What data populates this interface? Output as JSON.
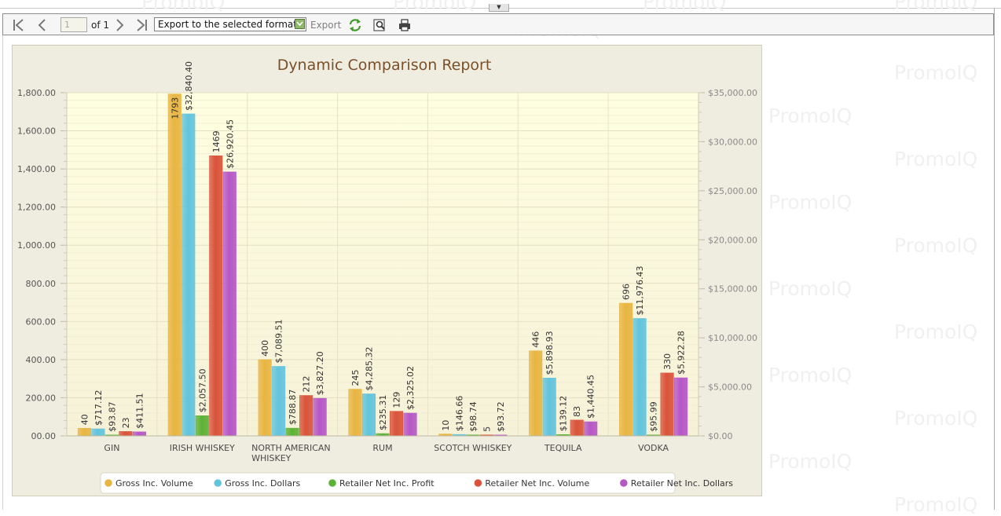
{
  "watermark": "PromoIQ",
  "toolbar": {
    "page_value": "1",
    "page_of": "of 1",
    "export_format": "Export to the selected format",
    "export_label": "Export",
    "first_icon": "first-page-icon",
    "prev_icon": "previous-page-icon",
    "next_icon": "next-page-icon",
    "last_icon": "last-page-icon",
    "refresh_icon": "refresh-icon",
    "search_icon": "search-icon",
    "print_icon": "print-icon"
  },
  "colors": {
    "plot_bg": "#fefde4",
    "grid": "#e6e3c8",
    "axis_text": "#555555",
    "title": "#7a4f2a",
    "series": [
      "#e8b542",
      "#62c4dc",
      "#5cb236",
      "#d9533a",
      "#b657c6"
    ]
  },
  "chart_data": {
    "type": "bar",
    "title": "Dynamic Comparison Report",
    "categories": [
      "GIN",
      "IRISH WHISKEY",
      "NORTH AMERICAN WHISKEY",
      "RUM",
      "SCOTCH WHISKEY",
      "TEQUILA",
      "VODKA"
    ],
    "y_left": {
      "min": 0,
      "max": 1800,
      "step": 200,
      "tick_labels": [
        "00.00",
        "200.00",
        "400.00",
        "600.00",
        "800.00",
        "1,000.00",
        "1,200.00",
        "1,400.00",
        "1,600.00",
        "1,800.00"
      ]
    },
    "y_right": {
      "min": 0,
      "max": 35000,
      "step": 5000,
      "tick_labels": [
        "$0.00",
        "$5,000.00",
        "$10,000.00",
        "$15,000.00",
        "$20,000.00",
        "$25,000.00",
        "$30,000.00",
        "$35,000.00"
      ]
    },
    "series": [
      {
        "name": "Gross Inc. Volume",
        "axis": "left",
        "values": [
          40,
          1793,
          400,
          245,
          10,
          446,
          696
        ],
        "labels": [
          "40",
          "1793",
          "400",
          "245",
          "10",
          "446",
          "696"
        ]
      },
      {
        "name": "Gross Inc. Dollars",
        "axis": "right",
        "values": [
          717.12,
          32840.4,
          7089.51,
          4285.32,
          146.66,
          5898.93,
          11976.43
        ],
        "labels": [
          "$717.12",
          "$32,840.40",
          "$7,089.51",
          "$4,285.32",
          "$146.66",
          "$5,898.93",
          "$11,976.43"
        ]
      },
      {
        "name": "Retailer Net Inc. Profit",
        "axis": "right",
        "values": [
          93.87,
          2057.5,
          788.87,
          235.31,
          98.74,
          139.12,
          95.99
        ],
        "labels": [
          "$93.87",
          "$2,057.50",
          "$788.87",
          "$235.31",
          "$98.74",
          "$139.12",
          "$95.99"
        ]
      },
      {
        "name": "Retailer Net Inc. Volume",
        "axis": "left",
        "values": [
          23,
          1469,
          212,
          129,
          5,
          83,
          330
        ],
        "labels": [
          "23",
          "1469",
          "212",
          "129",
          "5",
          "83",
          "330"
        ]
      },
      {
        "name": "Retailer Net Inc. Dollars",
        "axis": "right",
        "values": [
          411.51,
          26920.45,
          3827.2,
          2325.02,
          93.72,
          1440.45,
          5922.28
        ],
        "labels": [
          "$411.51",
          "$26,920.45",
          "$3,827.20",
          "$2,325.02",
          "$93.72",
          "$1,440.45",
          "$5,922.28"
        ]
      }
    ],
    "legend_position": "bottom-center"
  }
}
